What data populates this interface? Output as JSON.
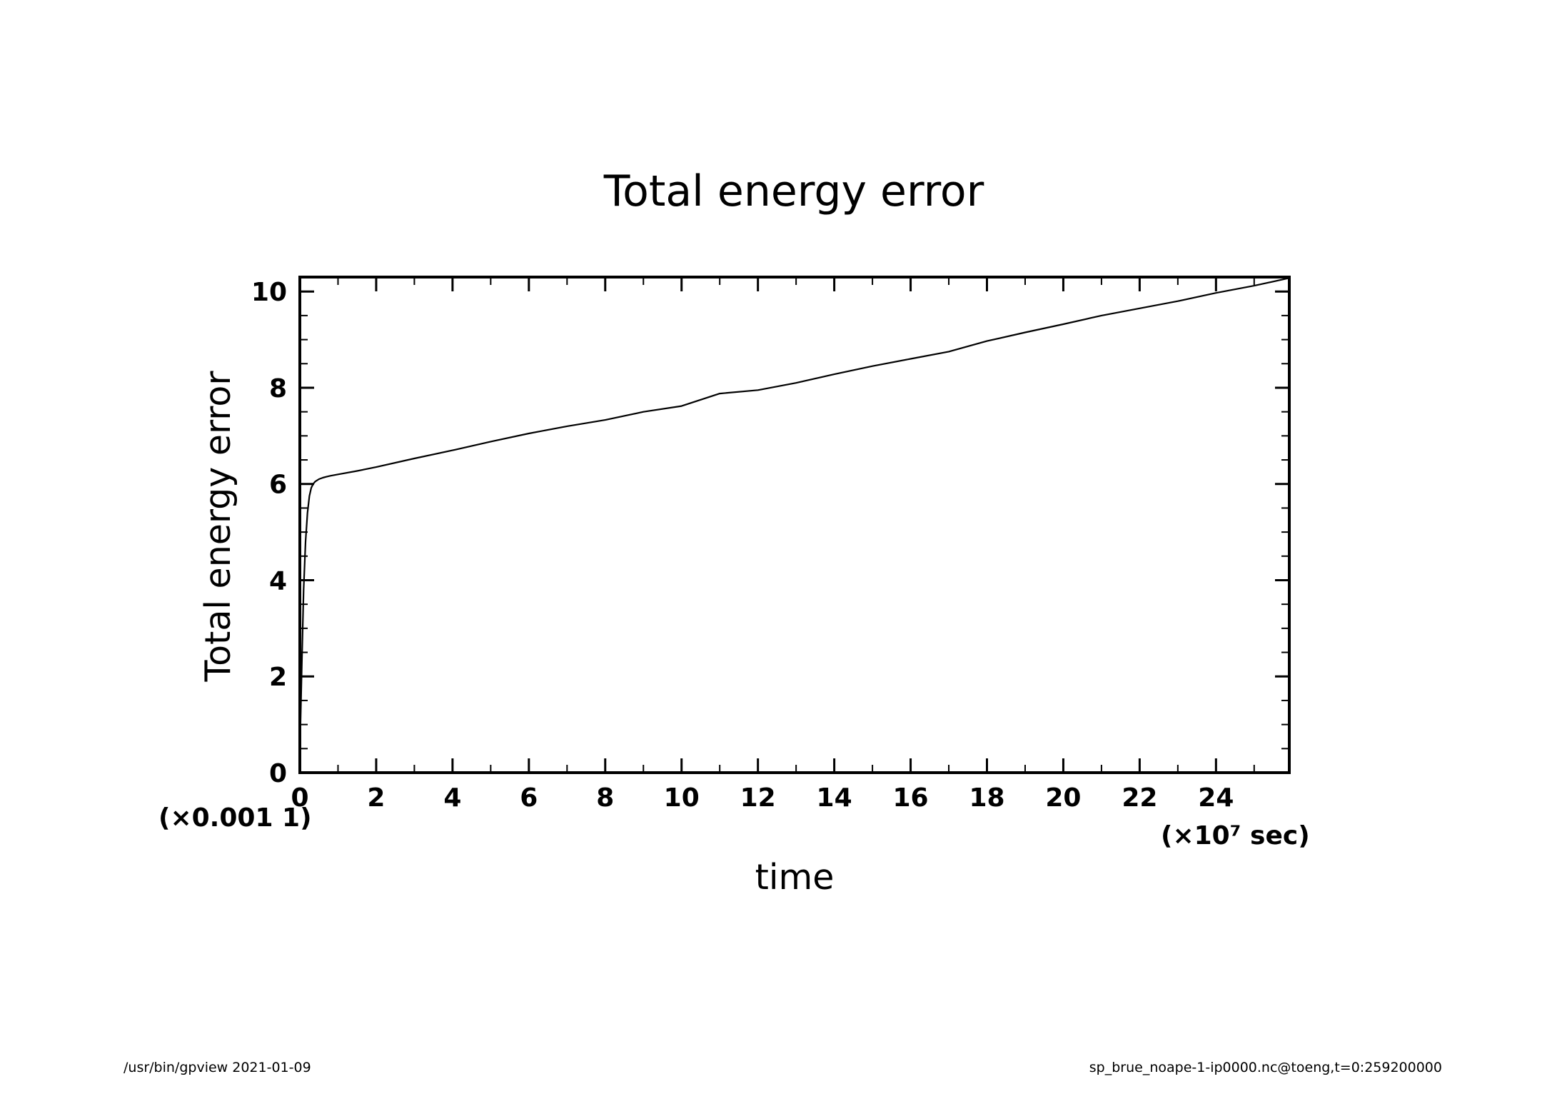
{
  "footer": {
    "left": "/usr/bin/gpview   2021-01-09",
    "right": "sp_brue_noape-1-ip0000.nc@toeng,t=0:259200000"
  },
  "chart_data": {
    "type": "line",
    "title": "Total energy error",
    "xlabel": "time",
    "ylabel": "Total energy error",
    "x_unit_label": "(×10⁷ sec)",
    "y_unit_label": "(×0.001  1)",
    "xlim": [
      0,
      25.92
    ],
    "ylim": [
      0,
      10.3
    ],
    "x_ticks": [
      "0",
      "2",
      "4",
      "6",
      "8",
      "10",
      "12",
      "14",
      "16",
      "18",
      "20",
      "22",
      "24"
    ],
    "y_ticks": [
      "0",
      "2",
      "4",
      "6",
      "8",
      "10"
    ],
    "grid": false,
    "series": [
      {
        "x": [
          0,
          0.05,
          0.1,
          0.15,
          0.2,
          0.25,
          0.3,
          0.35,
          0.4,
          0.5,
          0.6,
          0.7,
          0.8,
          1.0,
          1.5,
          2,
          3,
          4,
          5,
          6,
          7,
          8,
          9,
          10,
          11,
          12,
          13,
          14,
          15,
          16,
          17,
          18,
          19,
          20,
          21,
          22,
          23,
          24,
          25,
          25.92
        ],
        "y": [
          0.4,
          2.2,
          3.8,
          4.8,
          5.4,
          5.75,
          5.92,
          6.0,
          6.05,
          6.1,
          6.13,
          6.15,
          6.17,
          6.2,
          6.27,
          6.35,
          6.53,
          6.7,
          6.88,
          7.05,
          7.2,
          7.33,
          7.5,
          7.62,
          7.88,
          7.95,
          8.1,
          8.28,
          8.45,
          8.6,
          8.75,
          8.97,
          9.15,
          9.32,
          9.5,
          9.65,
          9.8,
          9.97,
          10.12,
          10.28
        ]
      }
    ]
  }
}
